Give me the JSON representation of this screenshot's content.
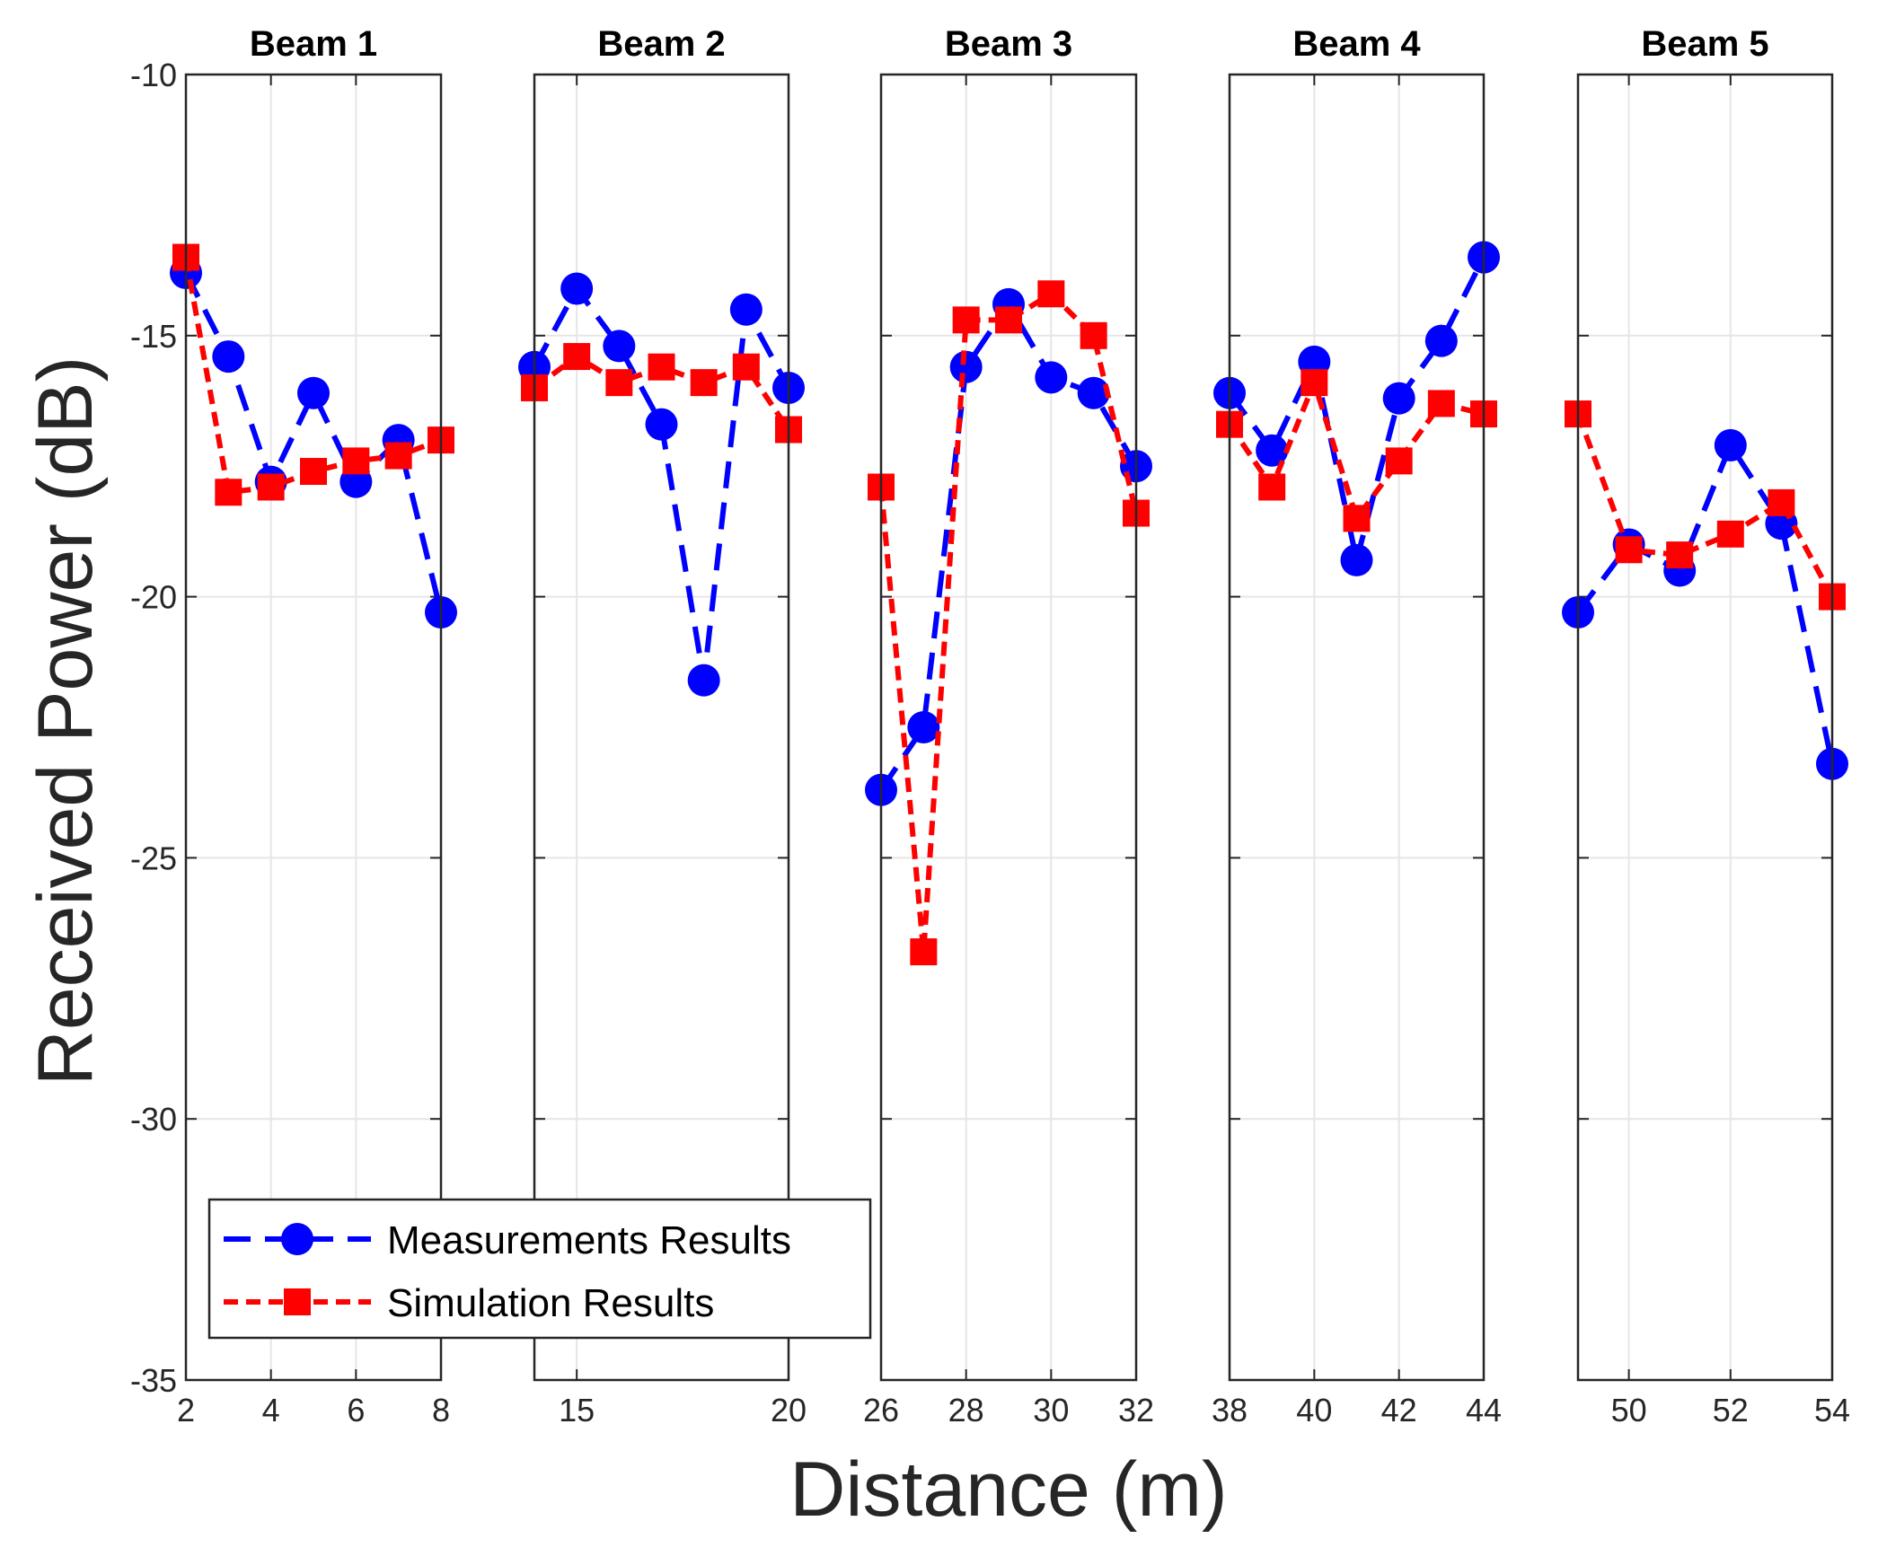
{
  "chart_data": {
    "type": "line",
    "ylabel": "Received Power (dB)",
    "xlabel": "Distance (m)",
    "ylim": [
      -35,
      -10
    ],
    "yticks": [
      -10,
      -15,
      -20,
      -25,
      -30,
      -35
    ],
    "grid": true,
    "legend": {
      "position": "lower-left",
      "entries": [
        "Measurements Results",
        "Simulation Results"
      ]
    },
    "colors": {
      "measurements": "#0000ff",
      "simulation": "#ff0000",
      "grid": "#e6e6e6",
      "axis": "#262626"
    },
    "panels": [
      {
        "title": "Beam 1",
        "xlim": [
          2,
          8
        ],
        "xticks": [
          2,
          4,
          6,
          8
        ],
        "series": [
          {
            "name": "Measurements Results",
            "x": [
              2,
              3,
              4,
              5,
              6,
              7,
              8
            ],
            "y": [
              -13.8,
              -15.4,
              -17.8,
              -16.1,
              -17.8,
              -17.0,
              -20.3
            ]
          },
          {
            "name": "Simulation Results",
            "x": [
              2,
              3,
              4,
              5,
              6,
              7,
              8
            ],
            "y": [
              -13.5,
              -18.0,
              -17.9,
              -17.6,
              -17.4,
              -17.3,
              -17.0
            ]
          }
        ]
      },
      {
        "title": "Beam 2",
        "xlim": [
          14,
          20
        ],
        "xticks": [
          15,
          20
        ],
        "series": [
          {
            "name": "Measurements Results",
            "x": [
              14,
              15,
              16,
              17,
              18,
              19,
              20
            ],
            "y": [
              -15.6,
              -14.1,
              -15.2,
              -16.7,
              -21.6,
              -14.5,
              -16.0
            ]
          },
          {
            "name": "Simulation Results",
            "x": [
              14,
              15,
              16,
              17,
              18,
              19,
              20
            ],
            "y": [
              -16.0,
              -15.4,
              -15.9,
              -15.6,
              -15.9,
              -15.6,
              -16.8
            ]
          }
        ]
      },
      {
        "title": "Beam 3",
        "xlim": [
          26,
          32
        ],
        "xticks": [
          26,
          28,
          30,
          32
        ],
        "series": [
          {
            "name": "Measurements Results",
            "x": [
              26,
              27,
              28,
              29,
              30,
              31,
              32
            ],
            "y": [
              -23.7,
              -22.5,
              -15.6,
              -14.4,
              -15.8,
              -16.1,
              -17.5
            ]
          },
          {
            "name": "Simulation Results",
            "x": [
              26,
              27,
              28,
              29,
              30,
              31,
              32
            ],
            "y": [
              -17.9,
              -26.8,
              -14.7,
              -14.7,
              -14.2,
              -15.0,
              -18.4
            ]
          }
        ]
      },
      {
        "title": "Beam 4",
        "xlim": [
          38,
          44
        ],
        "xticks": [
          38,
          40,
          42,
          44
        ],
        "series": [
          {
            "name": "Measurements Results",
            "x": [
              38,
              39,
              40,
              41,
              42,
              43,
              44
            ],
            "y": [
              -16.1,
              -17.2,
              -15.5,
              -19.3,
              -16.2,
              -15.1,
              -13.5
            ]
          },
          {
            "name": "Simulation Results",
            "x": [
              38,
              39,
              40,
              41,
              42,
              43,
              44
            ],
            "y": [
              -16.7,
              -17.9,
              -15.9,
              -18.5,
              -17.4,
              -16.3,
              -16.5
            ]
          }
        ]
      },
      {
        "title": "Beam 5",
        "xlim": [
          49,
          54
        ],
        "xticks": [
          50,
          52,
          54
        ],
        "series": [
          {
            "name": "Measurements Results",
            "x": [
              49,
              50,
              51,
              52,
              53,
              54
            ],
            "y": [
              -20.3,
              -19.0,
              -19.5,
              -17.1,
              -18.6,
              -23.2
            ]
          },
          {
            "name": "Simulation Results",
            "x": [
              49,
              50,
              51,
              52,
              53,
              54
            ],
            "y": [
              -16.5,
              -19.1,
              -19.2,
              -18.8,
              -18.2,
              -20.0
            ]
          }
        ]
      }
    ]
  }
}
